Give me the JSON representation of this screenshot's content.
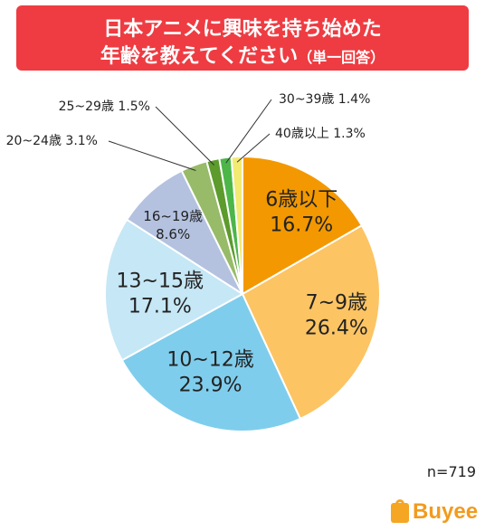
{
  "title": {
    "line1": "日本アニメに興味を持ち始めた",
    "line2": "年齢を教えてください",
    "sub": "（単一回答）"
  },
  "sample_size": "n=719",
  "logo_text": "Buyee",
  "chart_data": {
    "type": "pie",
    "start": "12 o'clock",
    "direction": "clockwise",
    "slices": [
      {
        "label": "6歳以下",
        "value": 16.7,
        "value_label": "16.7%",
        "color": "#f39800"
      },
      {
        "label": "7~9歳",
        "value": 26.4,
        "value_label": "26.4%",
        "color": "#fcc463"
      },
      {
        "label": "10~12歳",
        "value": 23.9,
        "value_label": "23.9%",
        "color": "#7fcdec"
      },
      {
        "label": "13~15歳",
        "value": 17.1,
        "value_label": "17.1%",
        "color": "#c6e7f5"
      },
      {
        "label": "16~19歳",
        "value": 8.6,
        "value_label": "8.6%",
        "color": "#b4c2e0"
      },
      {
        "label": "20~24歳",
        "value": 3.1,
        "value_label": "3.1%",
        "color": "#97bb68"
      },
      {
        "label": "25~29歳",
        "value": 1.5,
        "value_label": "1.5%",
        "color": "#5c9b2c"
      },
      {
        "label": "30~39歳",
        "value": 1.4,
        "value_label": "1.4%",
        "color": "#4cb649"
      },
      {
        "label": "40歳以上",
        "value": 1.3,
        "value_label": "1.3%",
        "color": "#f2ea71"
      }
    ]
  }
}
